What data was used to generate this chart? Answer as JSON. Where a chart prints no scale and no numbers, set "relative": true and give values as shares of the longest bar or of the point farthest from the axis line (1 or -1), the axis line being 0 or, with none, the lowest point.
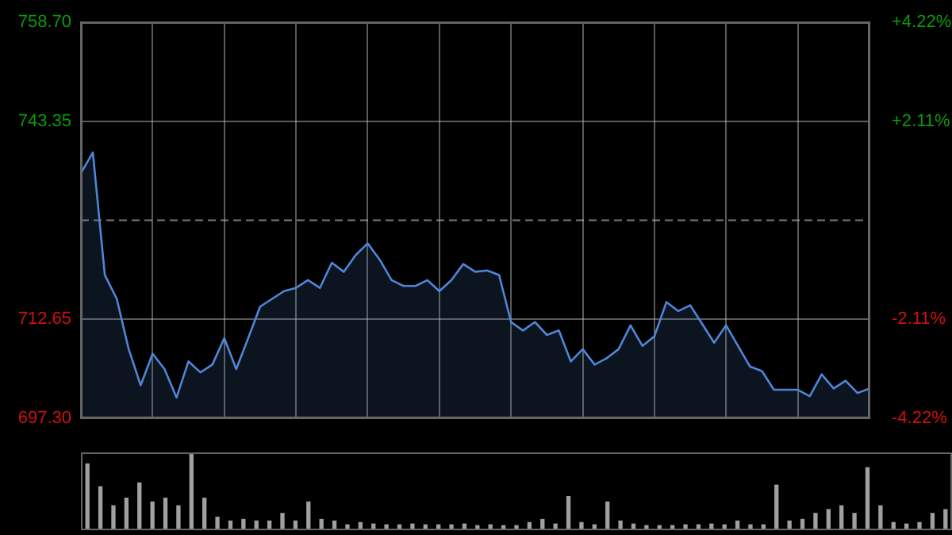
{
  "chart_data": [
    {
      "type": "area",
      "categories": [
        null,
        null,
        null,
        null,
        null,
        null,
        null,
        null,
        null,
        null,
        null,
        null,
        null,
        null,
        null,
        null,
        null,
        null,
        null,
        null,
        null,
        null,
        null,
        null,
        null,
        null,
        null,
        null,
        null,
        null,
        null,
        null,
        null,
        null,
        null,
        null,
        null,
        null,
        null,
        null,
        null,
        null,
        null,
        null,
        null,
        null,
        null,
        null,
        null,
        null,
        null,
        null,
        null,
        null,
        null,
        null,
        null,
        null,
        null,
        null,
        null,
        null,
        null,
        null,
        null,
        null,
        null
      ],
      "series": [
        {
          "color": "#4f86d6",
          "values": [
            735.3,
            738.5,
            719.5,
            715.8,
            708.0,
            702.4,
            707.3,
            704.9,
            700.5,
            706.1,
            704.4,
            705.6,
            709.7,
            704.9,
            709.7,
            714.6,
            715.8,
            717.0,
            717.5,
            718.7,
            717.5,
            721.4,
            720.0,
            722.6,
            724.4,
            721.9,
            718.7,
            717.8,
            717.8,
            718.7,
            717.0,
            718.7,
            721.2,
            720.0,
            720.2,
            719.5,
            712.2,
            710.9,
            712.2,
            710.2,
            710.9,
            706.1,
            708.0,
            705.6,
            706.6,
            708.0,
            711.7,
            708.5,
            710.0,
            715.3,
            713.9,
            714.8,
            711.9,
            709.0,
            711.7,
            708.5,
            705.3,
            704.6,
            701.7,
            701.7,
            701.7,
            700.7,
            704.1,
            701.9,
            703.1,
            701.2,
            701.9
          ]
        }
      ],
      "ylim": [
        697.3,
        758.7
      ],
      "yticks": [
        {
          "value": 697.3,
          "label": "697.30"
        },
        {
          "value": 712.65,
          "label": "712.65"
        },
        {
          "value": 743.35,
          "label": "743.35"
        },
        {
          "value": 758.7,
          "label": "758.70"
        }
      ],
      "y2lim": [
        -4.22,
        4.22
      ],
      "y2ticks": [
        {
          "value": -4.22,
          "label": "-4.22%"
        },
        {
          "value": -2.11,
          "label": "-2.11%"
        },
        {
          "value": 2.11,
          "label": "+2.11%"
        },
        {
          "value": 4.22,
          "label": "+4.22%"
        }
      ],
      "ref_lines": [
        {
          "axis": "y",
          "value": 728.0,
          "line_style": "dashed"
        }
      ],
      "grid": true,
      "legend": false,
      "marker": "none",
      "tick_labels": "y"
    },
    {
      "type": "bar",
      "relative": true,
      "categories": [
        null,
        null,
        null,
        null,
        null,
        null,
        null,
        null,
        null,
        null,
        null,
        null,
        null,
        null,
        null,
        null,
        null,
        null,
        null,
        null,
        null,
        null,
        null,
        null,
        null,
        null,
        null,
        null,
        null,
        null,
        null,
        null,
        null,
        null,
        null,
        null,
        null,
        null,
        null,
        null,
        null,
        null,
        null,
        null,
        null,
        null,
        null,
        null,
        null,
        null,
        null,
        null,
        null,
        null,
        null,
        null,
        null,
        null,
        null,
        null,
        null,
        null,
        null,
        null,
        null,
        null,
        null
      ],
      "series": [
        {
          "color": "#a0a0a0",
          "values": [
            0.85,
            0.55,
            0.3,
            0.4,
            0.6,
            0.35,
            0.4,
            0.3,
            1.0,
            0.4,
            0.15,
            0.1,
            0.12,
            0.1,
            0.1,
            0.2,
            0.1,
            0.35,
            0.12,
            0.1,
            0.05,
            0.08,
            0.06,
            0.05,
            0.05,
            0.06,
            0.05,
            0.05,
            0.05,
            0.06,
            0.04,
            0.05,
            0.04,
            0.04,
            0.08,
            0.12,
            0.06,
            0.42,
            0.08,
            0.05,
            0.35,
            0.1,
            0.06,
            0.04,
            0.04,
            0.04,
            0.05,
            0.05,
            0.06,
            0.05,
            0.1,
            0.05,
            0.05,
            0.57,
            0.1,
            0.12,
            0.2,
            0.25,
            0.3,
            0.2,
            0.8,
            0.3,
            0.08,
            0.06,
            0.08,
            0.2,
            0.25
          ]
        }
      ],
      "grid": false,
      "legend": false,
      "tick_labels": false
    }
  ]
}
